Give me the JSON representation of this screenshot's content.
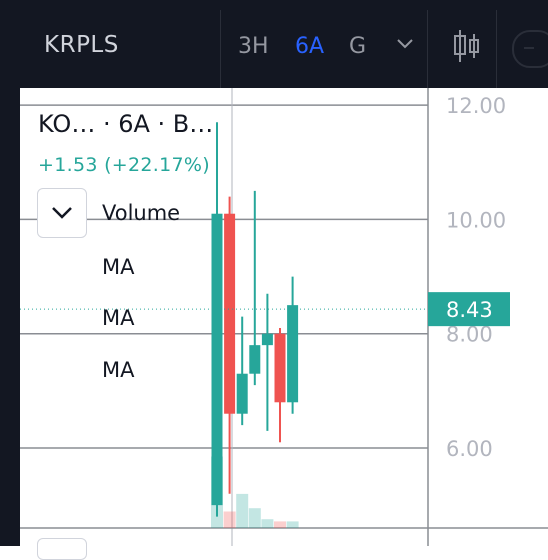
{
  "toolbar": {
    "symbol": "KRPLS",
    "timeframes": [
      {
        "label": "3H",
        "active": false
      },
      {
        "label": "6A",
        "active": true
      },
      {
        "label": "G",
        "active": false
      }
    ],
    "icons": [
      "chevron-down-icon",
      "candlestick-icon",
      "circle-button-icon"
    ]
  },
  "legend": {
    "title": "KO… · 6A · B…",
    "change": "+1.53 (+22.17%)",
    "indicators": [
      "Volume",
      "MA",
      "MA",
      "MA"
    ]
  },
  "colors": {
    "up": "#26a69a",
    "down": "#ef5350",
    "background_top": "#131722",
    "price_label": "#26a69a"
  },
  "chart_data": {
    "type": "candlestick",
    "y_axis": {
      "ticks": [
        "12.00",
        "10.00",
        "8.00",
        "6.00"
      ],
      "ylim": [
        4.6,
        12.3
      ]
    },
    "last_price_label": "8.43",
    "last_price": 8.43,
    "candles": [
      {
        "open": 5.0,
        "high": 11.7,
        "low": 4.8,
        "close": 10.1,
        "direction": "up"
      },
      {
        "open": 10.1,
        "high": 10.4,
        "low": 5.2,
        "close": 6.6,
        "direction": "down"
      },
      {
        "open": 6.6,
        "high": 8.3,
        "low": 6.4,
        "close": 7.3,
        "direction": "up"
      },
      {
        "open": 7.3,
        "high": 10.5,
        "low": 7.1,
        "close": 7.8,
        "direction": "up"
      },
      {
        "open": 7.8,
        "high": 8.7,
        "low": 6.3,
        "close": 8.0,
        "direction": "up"
      },
      {
        "open": 8.0,
        "high": 8.1,
        "low": 6.1,
        "close": 6.8,
        "direction": "down"
      },
      {
        "open": 6.8,
        "high": 9.0,
        "low": 6.6,
        "close": 8.5,
        "direction": "up"
      }
    ],
    "volume": [
      0.65,
      0.15,
      0.31,
      0.18,
      0.08,
      0.06,
      0.06
    ]
  }
}
